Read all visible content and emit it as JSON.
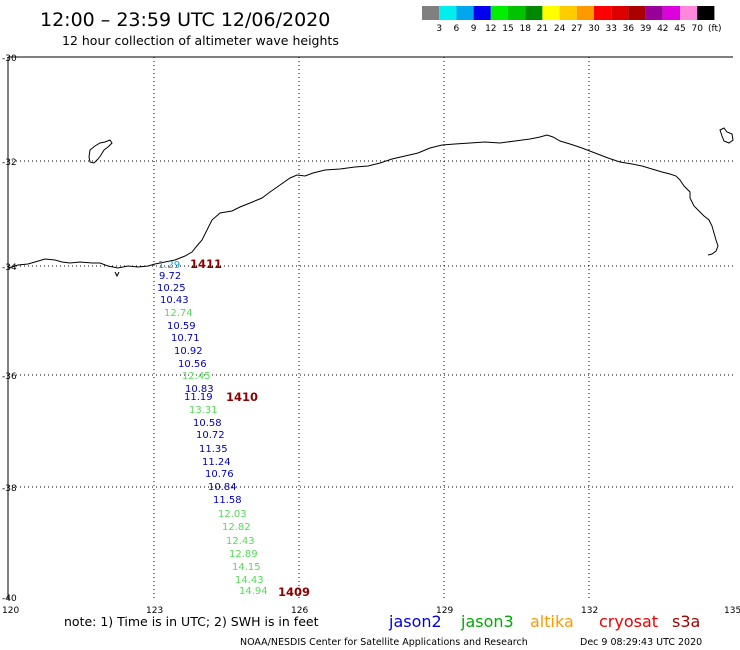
{
  "header": {
    "title": "12:00 – 23:59 UTC 12/06/2020",
    "subtitle": "12 hour collection of altimeter wave heights"
  },
  "legend": {
    "unit": "(ft)",
    "colors": [
      "#808080",
      "#00eeee",
      "#00a6ee",
      "#0000ee",
      "#00ee00",
      "#00c400",
      "#008800",
      "#ffff00",
      "#ffcc00",
      "#ff9900",
      "#ff0000",
      "#dd0000",
      "#aa0000",
      "#990099",
      "#dd00dd",
      "#ff88dd",
      "#000000"
    ],
    "labels": [
      "3",
      "6",
      "9",
      "12",
      "15",
      "18",
      "21",
      "24",
      "27",
      "30",
      "33",
      "36",
      "39",
      "42",
      "45",
      "70"
    ]
  },
  "axes": {
    "lat_labels": [
      "-30",
      "-32",
      "-34",
      "-36",
      "-38",
      "-40"
    ],
    "lon_labels": [
      "120",
      "123",
      "126",
      "129",
      "132",
      "135"
    ]
  },
  "passes": [
    {
      "label": "1411",
      "color": "#8b0000"
    },
    {
      "label": "1410",
      "color": "#8b0000"
    },
    {
      "label": "1409",
      "color": "#8b0000"
    }
  ],
  "track_values": [
    {
      "v": "1.29",
      "c": "#00a6ee"
    },
    {
      "v": "9.72",
      "c": "#0000bb"
    },
    {
      "v": "10.25",
      "c": "#0000bb"
    },
    {
      "v": "10.43",
      "c": "#0000bb"
    },
    {
      "v": "12.74",
      "c": "#55dd55"
    },
    {
      "v": "10.59",
      "c": "#0000bb"
    },
    {
      "v": "10.71",
      "c": "#0000bb"
    },
    {
      "v": "10.92",
      "c": "#0000bb"
    },
    {
      "v": "10.56",
      "c": "#0000bb"
    },
    {
      "v": "12.45",
      "c": "#55dd55"
    },
    {
      "v": "10.83",
      "c": "#0000bb"
    },
    {
      "v": "11.19",
      "c": "#0000bb"
    },
    {
      "v": "13.31",
      "c": "#55dd55"
    },
    {
      "v": "10.58",
      "c": "#0000bb"
    },
    {
      "v": "10.72",
      "c": "#0000bb"
    },
    {
      "v": "11.35",
      "c": "#0000bb"
    },
    {
      "v": "11.24",
      "c": "#0000bb"
    },
    {
      "v": "10.76",
      "c": "#0000bb"
    },
    {
      "v": "10.84",
      "c": "#0000bb"
    },
    {
      "v": "11.58",
      "c": "#0000bb"
    },
    {
      "v": "12.03",
      "c": "#55dd55"
    },
    {
      "v": "12.82",
      "c": "#55dd55"
    },
    {
      "v": "12.43",
      "c": "#55dd55"
    },
    {
      "v": "12.89",
      "c": "#55dd55"
    },
    {
      "v": "14.15",
      "c": "#55dd55"
    },
    {
      "v": "14.43",
      "c": "#55dd55"
    },
    {
      "v": "14.94",
      "c": "#55dd55"
    }
  ],
  "footer": {
    "note": "note: 1) Time is in UTC; 2) SWH is in feet",
    "credit": "NOAA/NESDIS Center for Satellite Applications and Research",
    "timestamp": "Dec  9 08:29:43 UTC 2020",
    "satellites": [
      {
        "name": "jason2",
        "color": "#0000dd"
      },
      {
        "name": "jason3",
        "color": "#00aa00"
      },
      {
        "name": "altika",
        "color": "#ff9900"
      },
      {
        "name": "cryosat",
        "color": "#ee0000"
      },
      {
        "name": "s3a",
        "color": "#990000"
      }
    ]
  }
}
